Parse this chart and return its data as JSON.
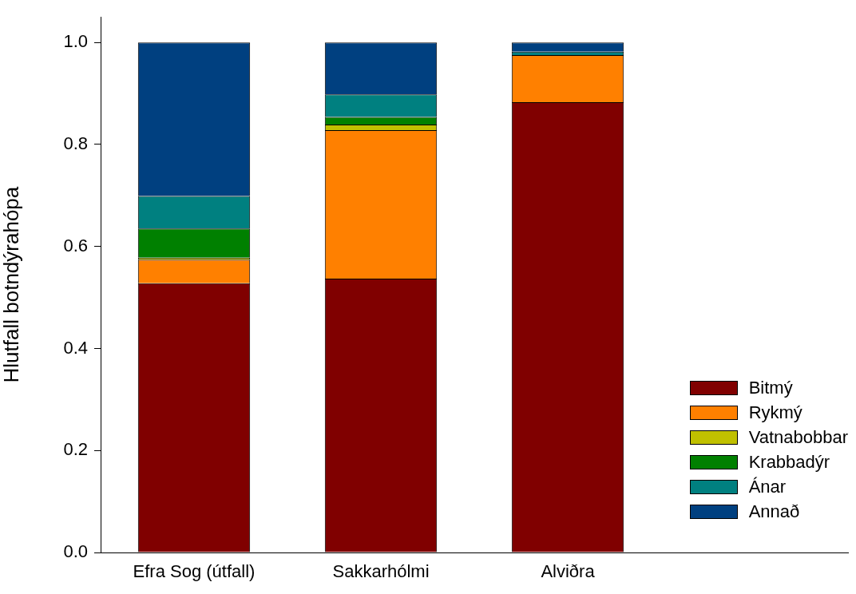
{
  "chart_data": {
    "type": "bar",
    "stacked": true,
    "ylabel": "Hlutfall botndýrahópa",
    "categories": [
      "Efra Sog (útfall)",
      "Sakkarhólmi",
      "Alviðra",
      null
    ],
    "series": [
      {
        "name": "Bitmý",
        "color": "#800000",
        "values": [
          0.528,
          0.537,
          0.883,
          null
        ]
      },
      {
        "name": "Rykmý",
        "color": "#ff8000",
        "values": [
          0.046,
          0.291,
          0.092,
          null
        ]
      },
      {
        "name": "Vatnabobbar",
        "color": "#c0c000",
        "values": [
          0.004,
          0.011,
          0,
          null
        ]
      },
      {
        "name": "Krabbadýr",
        "color": "#008000",
        "values": [
          0.057,
          0.015,
          0,
          null
        ]
      },
      {
        "name": "Ánar",
        "color": "#008080",
        "values": [
          0.064,
          0.044,
          0.007,
          null
        ]
      },
      {
        "name": "Annað",
        "color": "#004080",
        "values": [
          0.301,
          0.102,
          0.018,
          null
        ]
      }
    ],
    "ylim": [
      0,
      1.05
    ],
    "yticks": [
      {
        "value": 0,
        "label": "0.0"
      },
      {
        "value": 0.2,
        "label": "0.2"
      },
      {
        "value": 0.4,
        "label": "0.4"
      },
      {
        "value": 0.6,
        "label": "0.6"
      },
      {
        "value": 0.8,
        "label": "0.8"
      },
      {
        "value": 1,
        "label": "1.0"
      }
    ],
    "grid": false,
    "legend": "bottom right"
  }
}
